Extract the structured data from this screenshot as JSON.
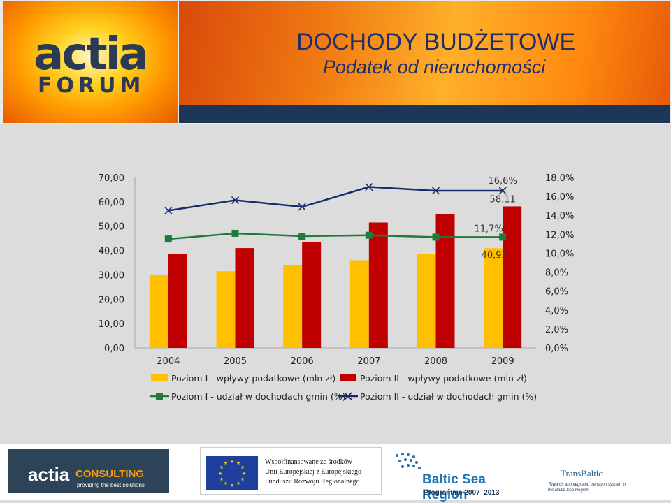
{
  "header": {
    "title": "DOCHODY BUDŻETOWE",
    "subtitle": "Podatek od nieruchomości",
    "logo_top": "actia",
    "logo_bottom": "FORUM"
  },
  "chart_data": {
    "type": "bar",
    "categories": [
      "2004",
      "2005",
      "2006",
      "2007",
      "2008",
      "2009"
    ],
    "series": [
      {
        "name": "Poziom I - wpływy podatkowe (mln zł)",
        "kind": "bar",
        "axis": "left",
        "color": "#FFC000",
        "values": [
          30.0,
          31.5,
          34.0,
          36.0,
          38.5,
          40.93
        ]
      },
      {
        "name": "Poziom II - wpływy podatkowe (mln zł)",
        "kind": "bar",
        "axis": "left",
        "color": "#C00000",
        "values": [
          38.5,
          41.0,
          43.5,
          51.5,
          55.0,
          58.11
        ]
      },
      {
        "name": "Poziom I - udział w dochodach gmin (%)",
        "kind": "line",
        "axis": "right",
        "color": "#1E7B3C",
        "marker": "square",
        "values": [
          11.5,
          12.1,
          11.8,
          11.9,
          11.7,
          11.7
        ]
      },
      {
        "name": "Poziom II - udział w dochodach gmin (%)",
        "kind": "line",
        "axis": "right",
        "color": "#1B2A6B",
        "marker": "x",
        "values": [
          14.5,
          15.6,
          14.9,
          17.0,
          16.6,
          16.6
        ]
      }
    ],
    "y_left": {
      "min": 0,
      "max": 70,
      "step": 10,
      "ticks": [
        "0,00",
        "10,00",
        "20,00",
        "30,00",
        "40,00",
        "50,00",
        "60,00",
        "70,00"
      ]
    },
    "y_right": {
      "min": 0,
      "max": 18,
      "step": 2,
      "ticks": [
        "0,0%",
        "2,0%",
        "4,0%",
        "6,0%",
        "8,0%",
        "10,0%",
        "12,0%",
        "14,0%",
        "16,0%",
        "18,0%"
      ]
    },
    "annotations": [
      {
        "text": "16,6%",
        "series": 3,
        "index": 5
      },
      {
        "text": "58,11",
        "series": 1,
        "index": 5
      },
      {
        "text": "11,7%",
        "series": 2,
        "index": 5
      },
      {
        "text": "40,93",
        "series": 0,
        "index": 5
      }
    ],
    "legend_position": "bottom",
    "grid": false
  },
  "footer": {
    "consulting_brand": "actia",
    "consulting_name": "CONSULTING",
    "consulting_tagline": "providing the best solutions",
    "eu_line1": "Współfinansowane ze środków",
    "eu_line2": "Unii Europejskiej z Europejskiego",
    "eu_line3": "Funduszu Rozwoju Regionalnego",
    "baltic_title": "Baltic Sea Region",
    "baltic_programme": "Programme 2007–2013",
    "transbaltic_name": "TransBaltic",
    "transbaltic_tagline": "Towards an integrated transport system in the Baltic Sea Region"
  }
}
